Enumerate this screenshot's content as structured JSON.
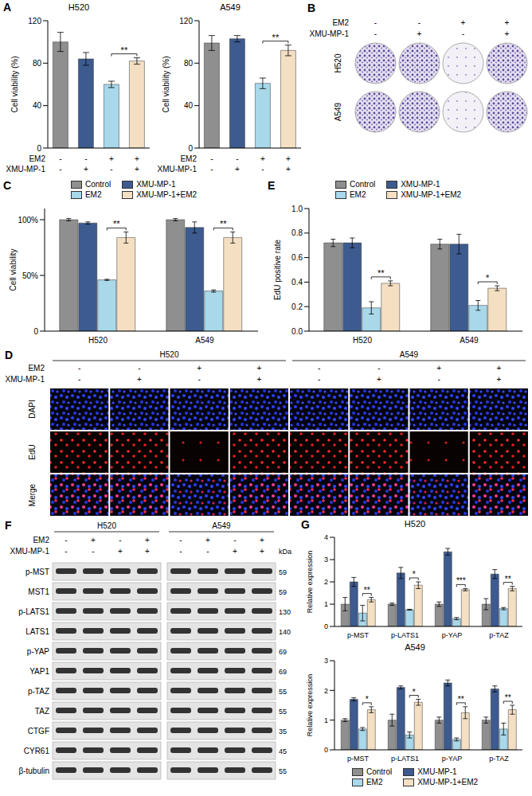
{
  "chart_data": [
    {
      "panel": "A",
      "type": "bar",
      "title": "H520",
      "y_label": "Cell viability (%)",
      "ylim": [
        0,
        120
      ],
      "yticks": [
        0,
        40,
        80,
        120
      ],
      "x_rows": [
        {
          "label": "EM2",
          "values": [
            "-",
            "-",
            "+",
            "+"
          ]
        },
        {
          "label": "XMU-MP-1",
          "values": [
            "-",
            "+",
            "-",
            "+"
          ]
        }
      ],
      "values": [
        100,
        84,
        60,
        82
      ],
      "errors": [
        9,
        6,
        3,
        3
      ],
      "colors": [
        "#8f8f8f",
        "#3d5b8f",
        "#a8d8ea",
        "#f4dfc3"
      ],
      "annotations": [
        "**"
      ]
    },
    {
      "panel": "A",
      "type": "bar",
      "title": "A549",
      "y_label": "Cell viability (%)",
      "ylim": [
        0,
        120
      ],
      "yticks": [
        0,
        40,
        80,
        120
      ],
      "x_rows": [
        {
          "label": "EM2",
          "values": [
            "-",
            "-",
            "+",
            "+"
          ]
        },
        {
          "label": "XMU-MP-1",
          "values": [
            "-",
            "+",
            "-",
            "+"
          ]
        }
      ],
      "values": [
        99,
        103,
        61,
        92
      ],
      "errors": [
        7,
        3,
        5,
        5
      ],
      "colors": [
        "#8f8f8f",
        "#3d5b8f",
        "#a8d8ea",
        "#f4dfc3"
      ],
      "annotations": [
        "**"
      ]
    },
    {
      "panel": "C",
      "type": "bar",
      "y_label": "Cell viability",
      "ylim": [
        0,
        110
      ],
      "yticks": [
        0,
        {
          "value": 50,
          "label": "50%"
        },
        {
          "value": 100,
          "label": "100%"
        }
      ],
      "categories": [
        "H520",
        "A549"
      ],
      "legend": "top",
      "annotations": [
        "**",
        "**"
      ],
      "series": [
        {
          "name": "Control",
          "color": "#8f8f8f",
          "values": [
            100,
            100
          ],
          "errors": [
            1,
            1
          ]
        },
        {
          "name": "XMU-MP-1",
          "color": "#3d5b8f",
          "values": [
            97,
            93
          ],
          "errors": [
            1,
            5
          ]
        },
        {
          "name": "EM2",
          "color": "#a8d8ea",
          "values": [
            46,
            36
          ],
          "errors": [
            0.5,
            1
          ]
        },
        {
          "name": "XMU-MP-1+EM2",
          "color": "#f4dfc3",
          "values": [
            84,
            84
          ],
          "errors": [
            5,
            5
          ]
        }
      ]
    },
    {
      "panel": "E",
      "type": "bar",
      "y_label": "EdU positive rate",
      "ylim": [
        0,
        1
      ],
      "yticks": [
        {
          "value": 0,
          "label": "0.0"
        },
        0.2,
        0.4,
        0.6,
        0.8,
        {
          "value": 1,
          "label": "1.0"
        }
      ],
      "categories": [
        "H520",
        "A549"
      ],
      "legend": "top",
      "annotations": [
        "**",
        "*"
      ],
      "series": [
        {
          "name": "Control",
          "color": "#8f8f8f",
          "values": [
            0.72,
            0.71
          ],
          "errors": [
            0.03,
            0.04
          ]
        },
        {
          "name": "XMU-MP-1",
          "color": "#3d5b8f",
          "values": [
            0.72,
            0.71
          ],
          "errors": [
            0.04,
            0.08
          ]
        },
        {
          "name": "EM2",
          "color": "#a8d8ea",
          "values": [
            0.19,
            0.21
          ],
          "errors": [
            0.05,
            0.04
          ]
        },
        {
          "name": "XMU-MP-1+EM2",
          "color": "#f4dfc3",
          "values": [
            0.39,
            0.35
          ],
          "errors": [
            0.02,
            0.02
          ]
        }
      ]
    },
    {
      "panel": "G",
      "type": "bar",
      "title": "H520",
      "y_label": "Relative expression",
      "ylim": [
        0,
        4
      ],
      "yticks": [
        0,
        1,
        2,
        3,
        4
      ],
      "categories": [
        "p-MST",
        "p-LATS1",
        "p-YAP",
        "p-TAZ"
      ],
      "annotations": [
        "**",
        "*",
        "***",
        "**"
      ],
      "series": [
        {
          "name": "Control",
          "color": "#8f8f8f",
          "values": [
            1,
            1,
            1,
            1
          ],
          "errors": [
            0.3,
            0.05,
            0.1,
            0.25
          ]
        },
        {
          "name": "XMU-MP-1",
          "color": "#3d5b8f",
          "values": [
            2.0,
            2.4,
            3.35,
            2.35
          ],
          "errors": [
            0.2,
            0.25,
            0.15,
            0.2
          ]
        },
        {
          "name": "EM2",
          "color": "#a8d8ea",
          "values": [
            0.6,
            0.75,
            0.35,
            0.8
          ],
          "errors": [
            0.35,
            0.02,
            0.05,
            0.05
          ]
        },
        {
          "name": "XMU-MP-1+EM2",
          "color": "#f4dfc3",
          "values": [
            1.2,
            1.85,
            1.65,
            1.7
          ],
          "errors": [
            0.1,
            0.15,
            0.05,
            0.1
          ]
        }
      ]
    },
    {
      "panel": "G",
      "type": "bar",
      "title": "A549",
      "y_label": "Relative expression",
      "ylim": [
        0,
        3
      ],
      "yticks": [
        0,
        1,
        2,
        3
      ],
      "categories": [
        "p-MST",
        "p-LATS1",
        "p-YAP",
        "p-TAZ"
      ],
      "legend": "bottom",
      "annotations": [
        "*",
        "*",
        "**",
        "**"
      ],
      "series": [
        {
          "name": "Control",
          "color": "#8f8f8f",
          "values": [
            1,
            1,
            1,
            1
          ],
          "errors": [
            0.05,
            0.2,
            0.1,
            0.1
          ]
        },
        {
          "name": "XMU-MP-1",
          "color": "#3d5b8f",
          "values": [
            1.7,
            2.1,
            2.25,
            2.05
          ],
          "errors": [
            0.05,
            0.05,
            0.1,
            0.1
          ]
        },
        {
          "name": "EM2",
          "color": "#a8d8ea",
          "values": [
            0.7,
            0.5,
            0.35,
            0.7
          ],
          "errors": [
            0.05,
            0.1,
            0.05,
            0.2
          ]
        },
        {
          "name": "XMU-MP-1+EM2",
          "color": "#f4dfc3",
          "values": [
            1.35,
            1.6,
            1.25,
            1.35
          ],
          "errors": [
            0.1,
            0.1,
            0.2,
            0.15
          ]
        }
      ]
    }
  ],
  "images": {
    "B": {
      "panel": "B",
      "rows": [
        "H520",
        "A549"
      ],
      "conditions": [
        {
          "label": "EM2",
          "values": [
            "-",
            "-",
            "+",
            "+"
          ]
        },
        {
          "label": "XMU-MP-1",
          "values": [
            "-",
            "+",
            "-",
            "+"
          ]
        }
      ]
    },
    "D": {
      "panel": "D",
      "groups": [
        "H520",
        "A549"
      ],
      "rows": [
        "DAPI",
        "EdU",
        "Merge"
      ],
      "conditions": [
        {
          "label": "EM2",
          "values": [
            "-",
            "-",
            "+",
            "+",
            "-",
            "-",
            "+",
            "+"
          ]
        },
        {
          "label": "XMU-MP-1",
          "values": [
            "-",
            "+",
            "-",
            "+",
            "-",
            "+",
            "-",
            "+"
          ]
        }
      ]
    },
    "F": {
      "panel": "F",
      "groups": [
        "H520",
        "A549"
      ],
      "unit": "kDa",
      "conditions": [
        {
          "label": "EM2",
          "values": [
            "-",
            "+",
            "-",
            "+",
            "-",
            "+",
            "-",
            "+"
          ]
        },
        {
          "label": "XMU-MP-1",
          "values": [
            "-",
            "-",
            "+",
            "+",
            "-",
            "-",
            "+",
            "+"
          ]
        }
      ],
      "rows": [
        {
          "label": "p-MST",
          "kDa": 59
        },
        {
          "label": "MST1",
          "kDa": 59
        },
        {
          "label": "p-LATS1",
          "kDa": 130
        },
        {
          "label": "LATS1",
          "kDa": 140
        },
        {
          "label": "p-YAP",
          "kDa": 69
        },
        {
          "label": "YAP1",
          "kDa": 69
        },
        {
          "label": "p-TAZ",
          "kDa": 55
        },
        {
          "label": "TAZ",
          "kDa": 55
        },
        {
          "label": "CTGF",
          "kDa": 35
        },
        {
          "label": "CYR61",
          "kDa": 45
        },
        {
          "label": "β-tubulin",
          "kDa": 55
        }
      ]
    }
  }
}
